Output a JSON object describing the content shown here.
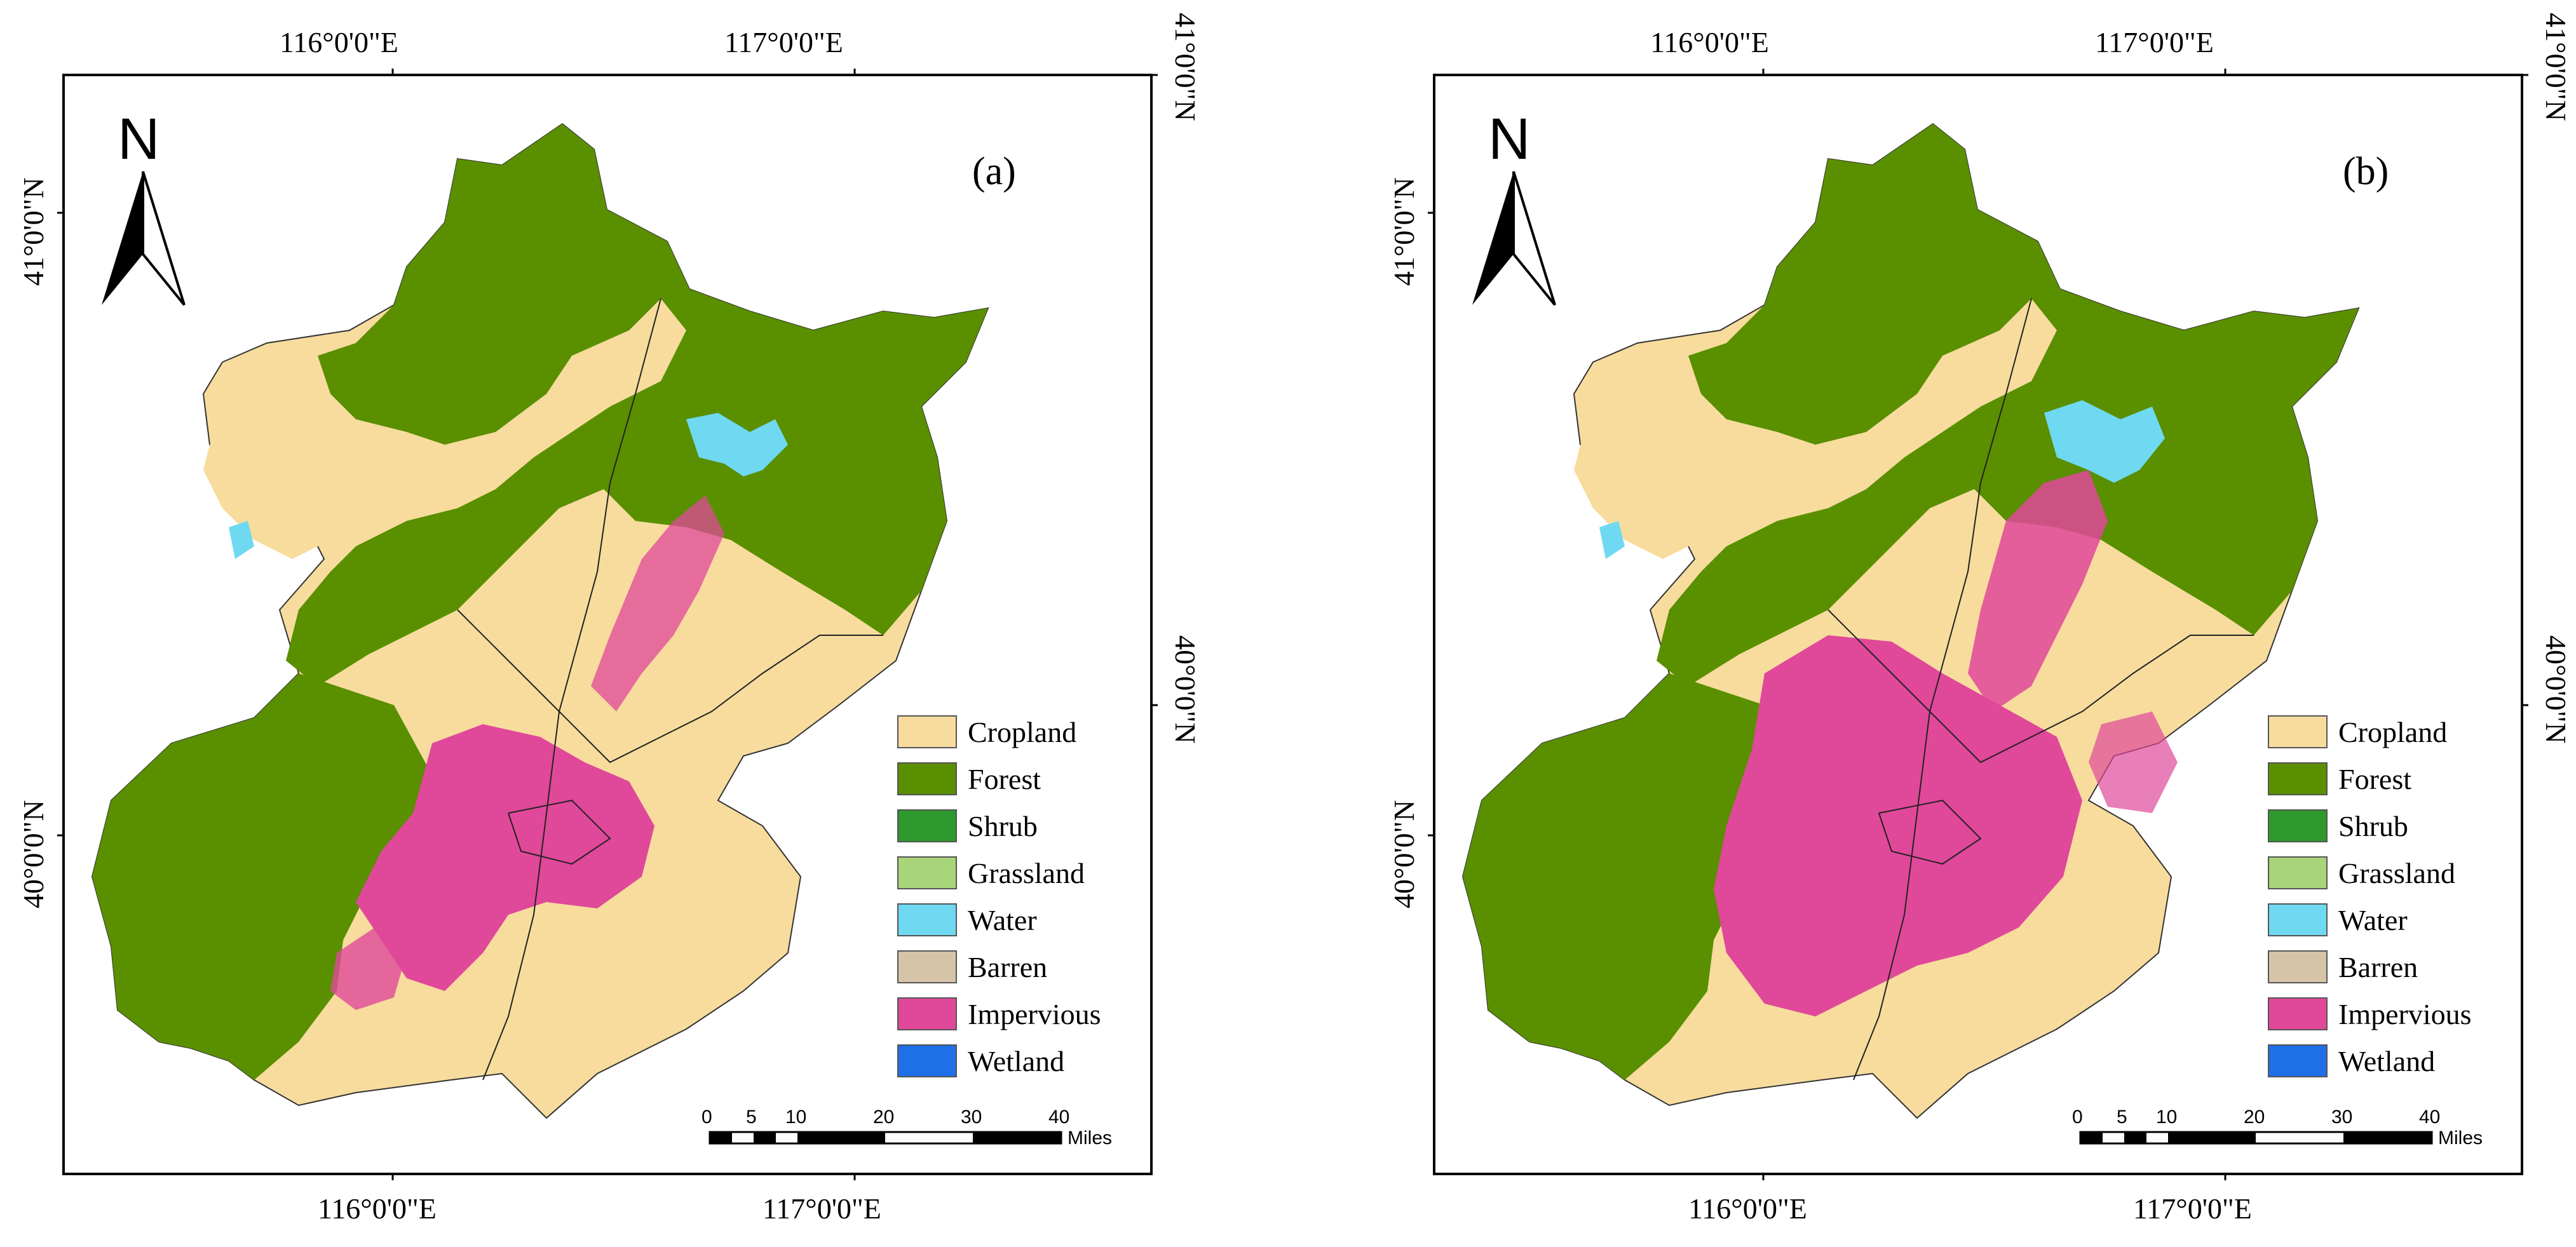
{
  "panels": [
    {
      "label": "(a)",
      "north": "N",
      "lon_ticks": [
        "116°0'0\"E",
        "117°0'0\"E"
      ],
      "lat_ticks": [
        "41°0'0\"N",
        "40°0'0\"N"
      ],
      "scale": {
        "ticks": [
          "0",
          "5",
          "10",
          "20",
          "30",
          "40"
        ],
        "unit": "Miles"
      }
    },
    {
      "label": "(b)",
      "north": "N",
      "lon_ticks": [
        "116°0'0\"E",
        "117°0'0\"E"
      ],
      "lat_ticks": [
        "41°0'0\"N",
        "40°0'0\"N"
      ],
      "scale": {
        "ticks": [
          "0",
          "5",
          "10",
          "20",
          "30",
          "40"
        ],
        "unit": "Miles"
      }
    }
  ],
  "legend": [
    {
      "label": "Cropland",
      "color": "#f7dc9e"
    },
    {
      "label": "Forest",
      "color": "#5a8f00"
    },
    {
      "label": "Shrub",
      "color": "#2e9a2e"
    },
    {
      "label": "Grassland",
      "color": "#a8d47a"
    },
    {
      "label": "Water",
      "color": "#6fd9f2"
    },
    {
      "label": "Barren",
      "color": "#d6c4a8"
    },
    {
      "label": "Impervious",
      "color": "#e0489a"
    },
    {
      "label": "Wetland",
      "color": "#1f6fe8"
    }
  ]
}
